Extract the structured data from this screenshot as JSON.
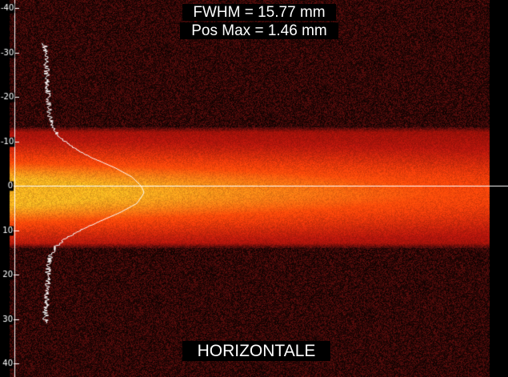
{
  "readouts": {
    "fwhm": "FWHM = 15.77 mm",
    "pos_max": "Pos Max = 1.46 mm",
    "view": "HORIZONTALE"
  },
  "colors": {
    "background": "#000000",
    "beam_core": "#f7b020",
    "beam_mid": "#ff4a0a",
    "beam_halo": "#b3160c",
    "noise_floor": "#6a1110",
    "profile_line": "#ffffff",
    "axis_line": "#ffffff",
    "tick_label_box": "#000000"
  },
  "chart_data": {
    "type": "heatmap",
    "title": "",
    "xlabel": "",
    "ylabel": "",
    "y_axis": {
      "ticks": [
        -40,
        -30,
        -20,
        -10,
        0,
        10,
        20,
        30,
        40
      ],
      "tick_labels": [
        "-40",
        "-30",
        "-20",
        "-10",
        "0",
        "10",
        "20",
        "30",
        "40"
      ],
      "range": [
        -42,
        42
      ],
      "unit": "mm",
      "direction": "downward-positive"
    },
    "beam": {
      "center_mm": 1.46,
      "fwhm_mm": 15.77,
      "halo_half_width_mm": 12.5,
      "fades_toward": "right",
      "right_edge_cutoff": "dark band at right border"
    },
    "zero_line_mm": 0,
    "profile": {
      "name": "",
      "orientation": "vertical, intensity plotted horizontally from left",
      "y_mm": [
        -32,
        -30,
        -28,
        -26,
        -24,
        -22,
        -20,
        -18,
        -16,
        -14,
        -12,
        -10,
        -8,
        -6,
        -4,
        -2,
        0,
        1.46,
        2,
        4,
        6,
        8,
        10,
        12,
        14,
        16,
        18,
        20,
        22,
        24,
        26,
        28,
        30,
        31
      ],
      "intensity": [
        0.03,
        0.03,
        0.04,
        0.05,
        0.05,
        0.06,
        0.07,
        0.07,
        0.08,
        0.1,
        0.14,
        0.22,
        0.35,
        0.52,
        0.72,
        0.88,
        0.97,
        1.0,
        0.99,
        0.93,
        0.77,
        0.57,
        0.38,
        0.22,
        0.13,
        0.08,
        0.07,
        0.06,
        0.06,
        0.05,
        0.05,
        0.04,
        0.04,
        0.03
      ]
    }
  }
}
